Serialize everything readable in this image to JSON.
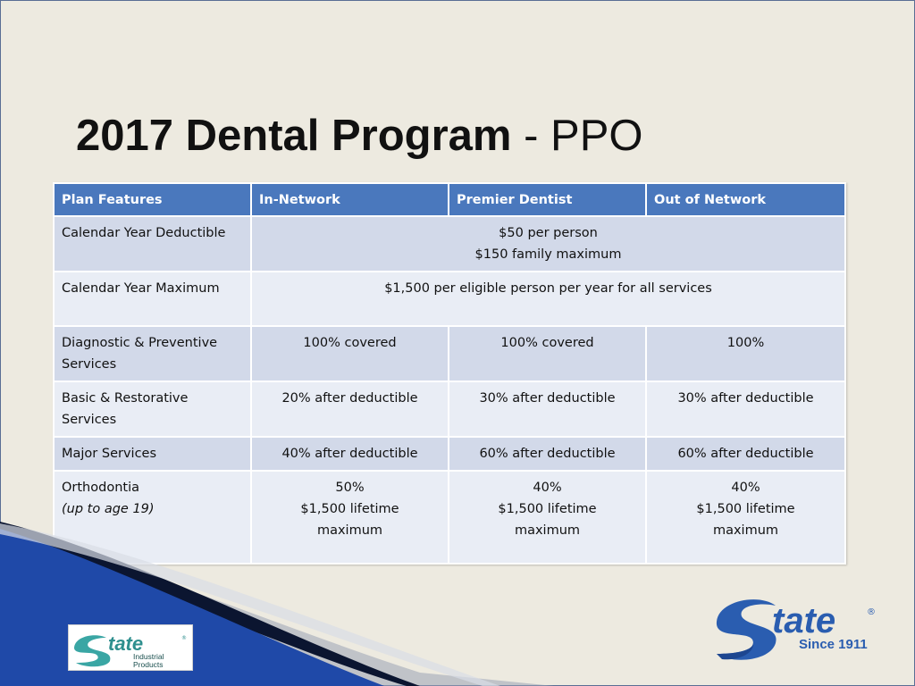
{
  "title": {
    "bold": "2017 Dental Program",
    "rest": "- PPO"
  },
  "table": {
    "headers": [
      "Plan Features",
      "In-Network",
      "Premier Dentist",
      "Out of Network"
    ],
    "deductible": {
      "feature": "Calendar Year Deductible",
      "line1": "$50 per person",
      "line2": "$150 family maximum"
    },
    "maximum": {
      "feature": "Calendar Year Maximum",
      "value": "$1,500 per eligible person per year for all services"
    },
    "diagnostic": {
      "feature": "Diagnostic & Preventive Services",
      "in": "100% covered",
      "premier": "100% covered",
      "out": "100%"
    },
    "basic": {
      "feature": "Basic & Restorative Services",
      "in": "20% after deductible",
      "premier": "30% after deductible",
      "out": "30% after deductible"
    },
    "major": {
      "feature": "Major Services",
      "in": "40% after deductible",
      "premier": "60% after deductible",
      "out": "60% after deductible"
    },
    "ortho": {
      "feature": "Orthodontia",
      "note": "(up to age 19)",
      "in": {
        "pct": "50%",
        "l1": "$1,500 lifetime",
        "l2": "maximum"
      },
      "premier": {
        "pct": "40%",
        "l1": "$1,500 lifetime",
        "l2": "maximum"
      },
      "out": {
        "pct": "40%",
        "l1": "$1,500 lifetime",
        "l2": "maximum"
      }
    }
  },
  "logo_small": {
    "word": "tate",
    "line1": "Industrial",
    "line2": "Products",
    "mark": "®"
  },
  "logo_large": {
    "word": "tate",
    "since": "Since 1911",
    "mark": "®"
  },
  "colors": {
    "header": "#4a78bd",
    "row_odd": "#d2d9e9",
    "row_even": "#e9edf5",
    "wave_blue": "#1f49a8",
    "logo_blue": "#2a5db0"
  }
}
